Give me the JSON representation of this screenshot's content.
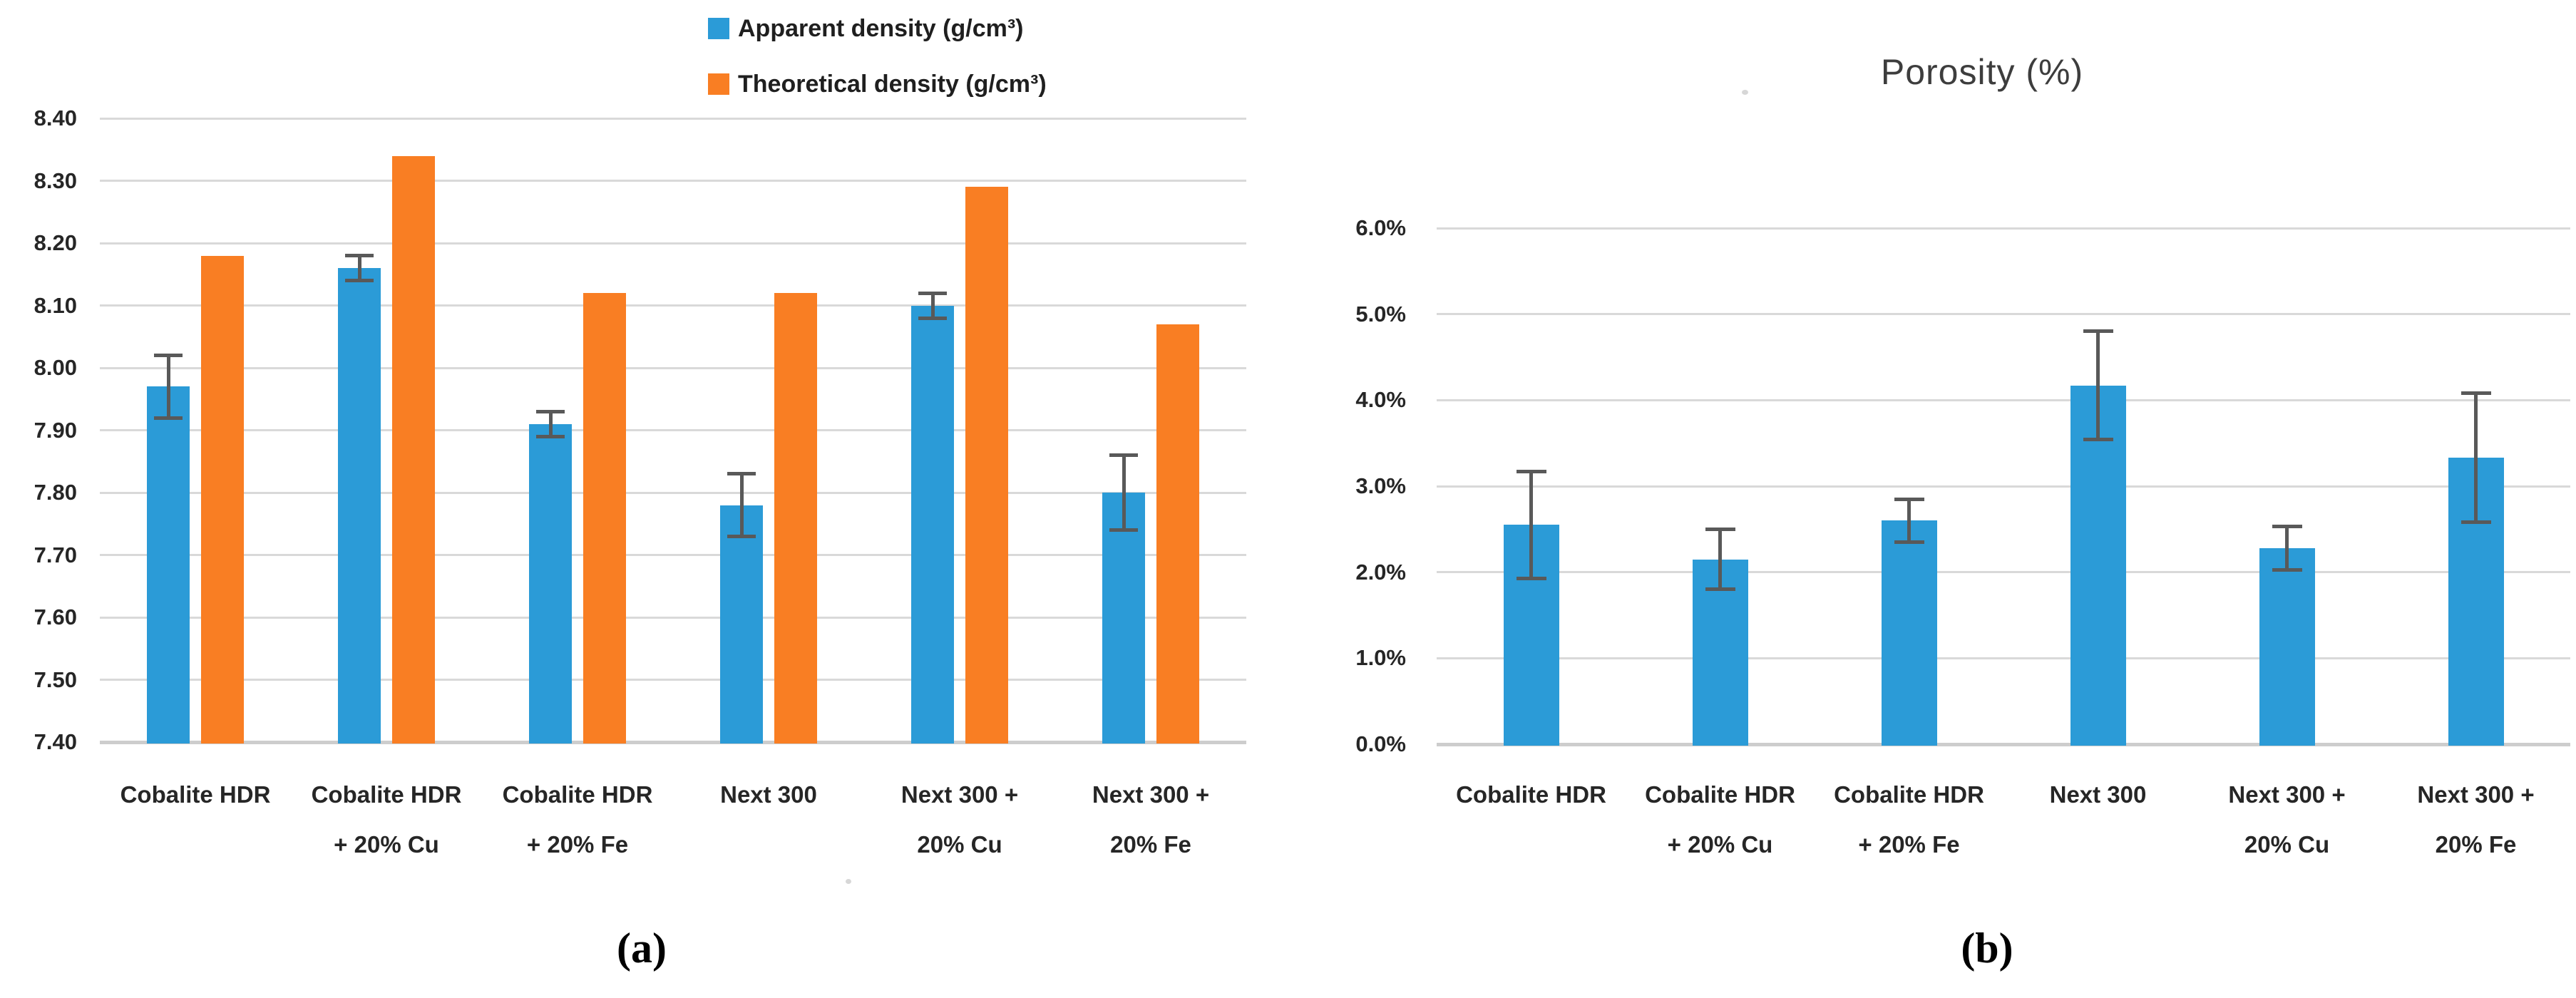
{
  "colors": {
    "grid": "#d9d9d9",
    "axis_line": "#cdcdcd",
    "error_bar": "#595959",
    "tick_text": "#262626",
    "title_text": "#3d3d3d",
    "blue_series": "#2b9bd7",
    "orange_series": "#f97e23"
  },
  "chart_data": [
    {
      "id": "density-chart",
      "type": "bar",
      "title": "",
      "caption": "(a)",
      "legend_position": "top",
      "grid": true,
      "categories": [
        "Cobalite HDR",
        "Cobalite HDR + 20% Cu",
        "Cobalite HDR + 20% Fe",
        "Next 300",
        "Next 300 + 20% Cu",
        "Next 300 + 20% Fe"
      ],
      "category_lines": [
        [
          "Cobalite HDR"
        ],
        [
          "Cobalite HDR",
          "+ 20% Cu"
        ],
        [
          "Cobalite HDR",
          "+ 20% Fe"
        ],
        [
          "Next 300"
        ],
        [
          "Next 300 +",
          "20% Cu"
        ],
        [
          "Next 300 +",
          "20% Fe"
        ]
      ],
      "series": [
        {
          "name": "Apparent density (g/cm³)",
          "color": "#2b9bd7",
          "values": [
            7.97,
            8.16,
            7.91,
            7.78,
            8.1,
            7.8
          ],
          "errors": [
            0.05,
            0.02,
            0.02,
            0.05,
            0.02,
            0.06
          ]
        },
        {
          "name": "Theoretical density (g/cm³)",
          "color": "#f97e23",
          "values": [
            8.18,
            8.34,
            8.12,
            8.12,
            8.29,
            8.07
          ],
          "errors": null
        }
      ],
      "ylim": [
        7.4,
        8.4
      ],
      "ytick_step": 0.1,
      "ytick_labels": [
        "7.40",
        "7.50",
        "7.60",
        "7.70",
        "7.80",
        "7.90",
        "8.00",
        "8.10",
        "8.20",
        "8.30",
        "8.40"
      ],
      "xlabel": "",
      "ylabel": ""
    },
    {
      "id": "porosity-chart",
      "type": "bar",
      "title": "Porosity (%)",
      "caption": "(b)",
      "legend_position": "none",
      "grid": true,
      "categories": [
        "Cobalite HDR",
        "Cobalite HDR + 20% Cu",
        "Cobalite HDR + 20% Fe",
        "Next 300",
        "Next 300 + 20% Cu",
        "Next 300 + 20% Fe"
      ],
      "category_lines": [
        [
          "Cobalite HDR"
        ],
        [
          "Cobalite HDR",
          "+ 20% Cu"
        ],
        [
          "Cobalite HDR",
          "+ 20% Fe"
        ],
        [
          "Next 300"
        ],
        [
          "Next 300 +",
          "20% Cu"
        ],
        [
          "Next 300 +",
          "20% Fe"
        ]
      ],
      "series": [
        {
          "name": "Porosity (%)",
          "color": "#2b9bd7",
          "values": [
            2.55,
            2.15,
            2.6,
            4.17,
            2.28,
            3.33
          ],
          "errors": [
            0.62,
            0.35,
            0.25,
            0.63,
            0.25,
            0.75
          ]
        }
      ],
      "ylim": [
        0.0,
        6.0
      ],
      "ytick_step": 1.0,
      "ytick_labels": [
        "0.0%",
        "1.0%",
        "2.0%",
        "3.0%",
        "4.0%",
        "5.0%",
        "6.0%"
      ],
      "xlabel": "",
      "ylabel": ""
    }
  ]
}
